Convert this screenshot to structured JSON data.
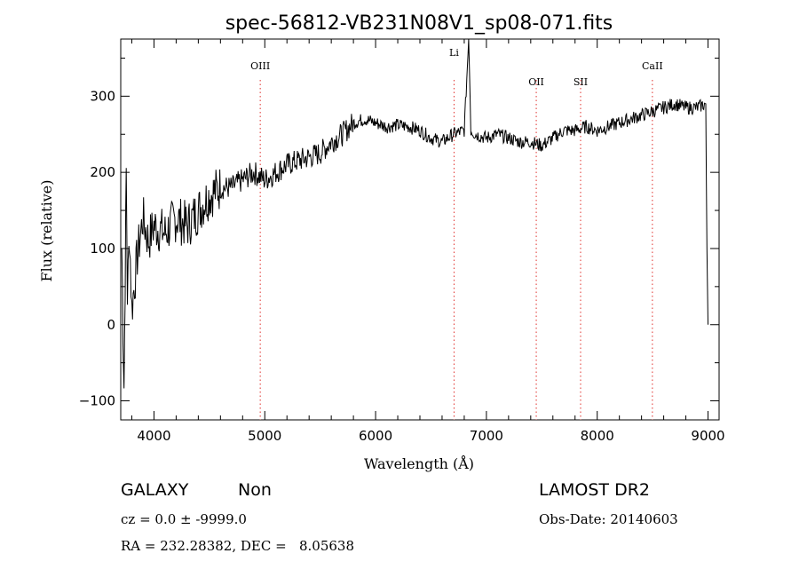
{
  "chart_data": {
    "type": "line",
    "title": "spec-56812-VB231N08V1_sp08-071.fits",
    "xlabel": "Wavelength (Å)",
    "ylabel": "Flux (relative)",
    "xlim": [
      3700,
      9100
    ],
    "ylim": [
      -125,
      375
    ],
    "xticks": [
      4000,
      5000,
      6000,
      7000,
      8000,
      9000
    ],
    "yticks": [
      -100,
      0,
      100,
      200,
      300
    ],
    "grid": false,
    "lines": [
      {
        "label": "OIII",
        "wavelength": 4959
      },
      {
        "label": "Li",
        "wavelength": 6708
      },
      {
        "label": "OII",
        "wavelength": 7450
      },
      {
        "label": "SII",
        "wavelength": 7850
      },
      {
        "label": "CaII",
        "wavelength": 8498
      }
    ],
    "line_color": "#e0302c",
    "spectrum_color": "#000000",
    "series": [
      {
        "x": [
          3710,
          3720,
          3730,
          3740,
          3750,
          3760,
          3780,
          3800,
          3850,
          3900,
          3950,
          4000,
          4100,
          4200,
          4300,
          4400,
          4500,
          4600,
          4700,
          4800,
          4900,
          5000,
          5100,
          5200,
          5300,
          5400,
          5500,
          5600,
          5700,
          5800,
          5900,
          6000,
          6100,
          6200,
          6300,
          6400,
          6500,
          6600,
          6700,
          6800,
          6840,
          6860,
          6900,
          7000,
          7100,
          7200,
          7300,
          7400,
          7500,
          7600,
          7700,
          7800,
          7900,
          8000,
          8100,
          8200,
          8300,
          8400,
          8500,
          8600,
          8700,
          8800,
          8900,
          8980,
          8990,
          9000
        ],
        "y": [
          100,
          0,
          -80,
          60,
          200,
          40,
          120,
          20,
          90,
          140,
          110,
          130,
          120,
          140,
          130,
          150,
          170,
          180,
          180,
          190,
          200,
          190,
          200,
          210,
          215,
          220,
          225,
          240,
          250,
          265,
          270,
          265,
          260,
          262,
          260,
          255,
          245,
          240,
          250,
          255,
          375,
          255,
          250,
          245,
          250,
          245,
          240,
          240,
          235,
          245,
          255,
          255,
          260,
          255,
          260,
          265,
          270,
          275,
          280,
          285,
          290,
          285,
          285,
          290,
          100,
          0
        ]
      }
    ]
  },
  "info": {
    "object_class": "GALAXY",
    "subclass": "Non",
    "survey": "LAMOST DR2",
    "cz": "cz = 0.0 ± -9999.0",
    "obs_date": "Obs-Date: 20140603",
    "coords": "RA = 232.28382, DEC =   8.05638"
  }
}
